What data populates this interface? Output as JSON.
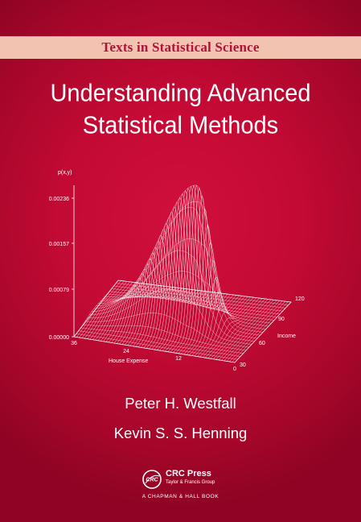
{
  "series": "Texts in Statistical Science",
  "title": {
    "line1": "Understanding Advanced",
    "line2": "Statistical Methods"
  },
  "plot": {
    "zlabel": "p(x,y)",
    "zticks": [
      "0.00236",
      "0.00157",
      "0.00079",
      "0.00000"
    ],
    "xlabel": "House Expense",
    "xticks": [
      "36",
      "24",
      "12",
      "0"
    ],
    "ylabel": "Income",
    "yticks": [
      "120",
      "90",
      "60",
      "30"
    ]
  },
  "authors": [
    "Peter H. Westfall",
    "Kevin S. S. Henning"
  ],
  "publisher": {
    "logo_text": "CRC",
    "name": "CRC Press",
    "subtitle": "Taylor & Francis Group",
    "imprint": "A CHAPMAN & HALL BOOK"
  },
  "colors": {
    "background": "#c20a34",
    "band": "#f2c3b0",
    "band_text": "#b2123a",
    "text": "#ffffff"
  }
}
